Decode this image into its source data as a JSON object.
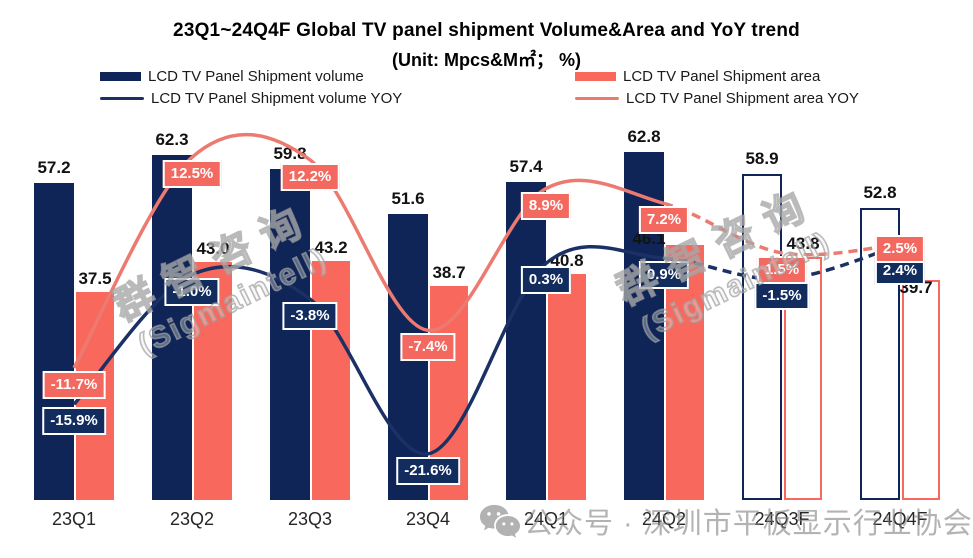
{
  "title": {
    "line1": "23Q1~24Q4F Global TV panel shipment Volume&Area and YoY trend",
    "line2": "(Unit: Mpcs&M㎡； %)"
  },
  "legend": {
    "volume_bar": "LCD TV Panel Shipment volume",
    "volume_line": "LCD TV Panel Shipment volume YOY",
    "area_bar": "LCD TV Panel Shipment area",
    "area_line": "LCD TV Panel Shipment area YOY"
  },
  "colors": {
    "volume": "#0f2557",
    "area": "#f9685c",
    "volume_line": "#1b3166",
    "area_line": "#ed7a70",
    "volume_box": "#122c5e",
    "area_box": "#f4695f"
  },
  "chart_data": {
    "type": "bar+line",
    "title": "23Q1~24Q4F Global TV panel shipment Volume&Area and YoY trend",
    "subtitle": "(Unit: Mpcs&M㎡； %)",
    "categories": [
      "23Q1",
      "23Q2",
      "23Q3",
      "23Q4",
      "24Q1",
      "24Q2",
      "24Q3F",
      "24Q4F"
    ],
    "forecast_start_index": 6,
    "forecast_style": "hollow bars and dashed line segments after 24Q2",
    "legend_position": "top",
    "grid": false,
    "series": [
      {
        "name": "LCD TV Panel Shipment volume",
        "type": "bar",
        "unit": "Mpcs",
        "values": [
          57.2,
          62.3,
          59.8,
          51.6,
          57.4,
          62.8,
          58.9,
          52.8
        ],
        "labels": [
          "57.2",
          "62.3",
          "59.8",
          "51.6",
          "57.4",
          "62.8",
          "58.9",
          "52.8"
        ]
      },
      {
        "name": "LCD TV Panel Shipment area",
        "type": "bar",
        "unit": "M㎡",
        "values": [
          37.5,
          43.0,
          43.2,
          38.7,
          40.8,
          46.1,
          43.8,
          39.7
        ],
        "labels": [
          "37.5",
          "43.0",
          "43.2",
          "38.7",
          "40.8",
          "46.1",
          "43.8",
          "39.7"
        ]
      },
      {
        "name": "LCD TV Panel Shipment volume YOY",
        "type": "line",
        "unit": "%",
        "values": [
          -15.9,
          -1.0,
          -3.8,
          -21.6,
          0.3,
          0.9,
          -1.5,
          2.4
        ],
        "labels": [
          "-15.9%",
          "-1.0%",
          "-3.8%",
          "-21.6%",
          "0.3%",
          "0.9%",
          "-1.5%",
          "2.4%"
        ]
      },
      {
        "name": "LCD TV Panel Shipment area YOY",
        "type": "line",
        "unit": "%",
        "values": [
          -11.7,
          12.5,
          12.2,
          -7.4,
          8.9,
          7.2,
          1.5,
          2.5
        ],
        "labels": [
          "-11.7%",
          "12.5%",
          "12.2%",
          "-7.4%",
          "8.9%",
          "7.2%",
          "1.5%",
          "2.5%"
        ]
      }
    ]
  },
  "watermarks": {
    "diagonal_line1": "群智咨询",
    "diagonal_line2": "(Sigmaintell)",
    "bottom_text": "公众号 · 深圳市平板显示行业协会"
  }
}
